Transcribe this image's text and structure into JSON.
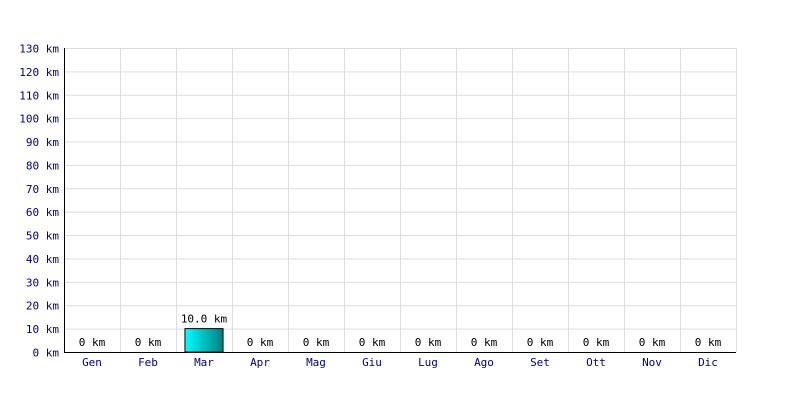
{
  "chart_data": {
    "type": "bar",
    "categories": [
      "Gen",
      "Feb",
      "Mar",
      "Apr",
      "Mag",
      "Giu",
      "Lug",
      "Ago",
      "Set",
      "Ott",
      "Nov",
      "Dic"
    ],
    "values": [
      0,
      0,
      10.0,
      0,
      0,
      0,
      0,
      0,
      0,
      0,
      0,
      0
    ],
    "data_labels": [
      "0 km",
      "0 km",
      "10.0 km",
      "0 km",
      "0 km",
      "0 km",
      "0 km",
      "0 km",
      "0 km",
      "0 km",
      "0 km",
      "0 km"
    ],
    "y_ticks": [
      "0 km",
      "10 km",
      "20 km",
      "30 km",
      "40 km",
      "50 km",
      "60 km",
      "70 km",
      "80 km",
      "90 km",
      "100 km",
      "110 km",
      "120 km",
      "130 km"
    ],
    "ylim": [
      0,
      130
    ],
    "ytick_step": 10,
    "title": "",
    "xlabel": "",
    "ylabel": "",
    "grid": true,
    "legend": "none",
    "colors": {
      "bar_light": "#00ffff",
      "bar_dark": "#008080",
      "bar_edge": "#000000",
      "grid": "#dddddd",
      "axis": "#000000",
      "tick_text": "#000080",
      "label_text": "#000000"
    }
  }
}
